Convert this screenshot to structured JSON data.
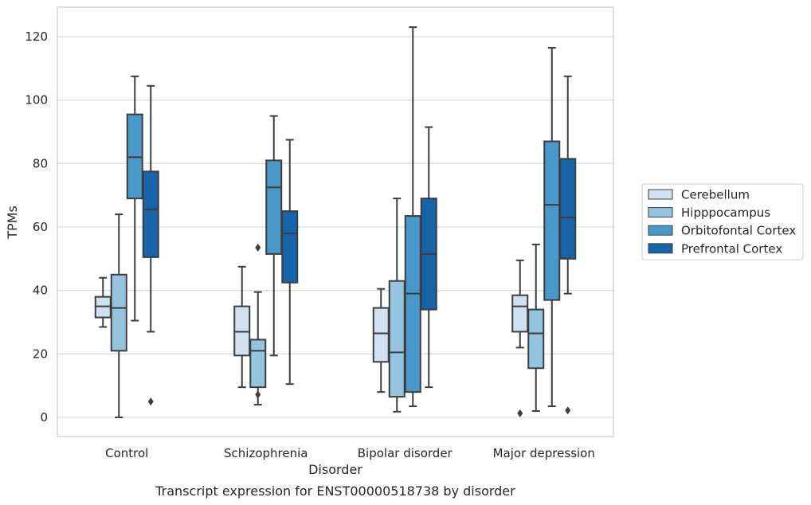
{
  "caption": "Transcript expression for ENST00000518738 by disorder",
  "chart_data": {
    "type": "boxplot",
    "xlabel": "Disorder",
    "ylabel": "TPMs",
    "ylim": [
      -6,
      129
    ],
    "yticks": [
      0,
      20,
      40,
      60,
      80,
      100,
      120
    ],
    "grid": "horizontal",
    "legend_position": "right",
    "categories": [
      "Control",
      "Schizophrenia",
      "Bipolar disorder",
      "Major depression"
    ],
    "series": [
      {
        "name": "Cerebellum",
        "color": "#d0e1f2",
        "boxes": [
          {
            "whisker_low": 28.5,
            "q1": 31.5,
            "median": 35,
            "q3": 38,
            "whisker_high": 44,
            "outliers": []
          },
          {
            "whisker_low": 9.5,
            "q1": 19.5,
            "median": 27,
            "q3": 35,
            "whisker_high": 47.5,
            "outliers": []
          },
          {
            "whisker_low": 8,
            "q1": 17.5,
            "median": 26.5,
            "q3": 34.5,
            "whisker_high": 40.5,
            "outliers": []
          },
          {
            "whisker_low": 22,
            "q1": 27,
            "median": 35,
            "q3": 38.5,
            "whisker_high": 49.5,
            "outliers": [
              1.3
            ]
          }
        ]
      },
      {
        "name": "Hipppocampus",
        "color": "#94c4df",
        "boxes": [
          {
            "whisker_low": 0,
            "q1": 21,
            "median": 34.5,
            "q3": 45,
            "whisker_high": 64,
            "outliers": []
          },
          {
            "whisker_low": 4,
            "q1": 9.5,
            "median": 21,
            "q3": 24.5,
            "whisker_high": 39.5,
            "outliers": [
              53.5,
              7.2
            ]
          },
          {
            "whisker_low": 1.8,
            "q1": 6.5,
            "median": 20.5,
            "q3": 43,
            "whisker_high": 69,
            "outliers": []
          },
          {
            "whisker_low": 2,
            "q1": 15.5,
            "median": 26.5,
            "q3": 34,
            "whisker_high": 54.5,
            "outliers": []
          }
        ]
      },
      {
        "name": "Orbitofontal Cortex",
        "color": "#4a98c9",
        "boxes": [
          {
            "whisker_low": 30.5,
            "q1": 69,
            "median": 82,
            "q3": 95.5,
            "whisker_high": 107.5,
            "outliers": []
          },
          {
            "whisker_low": 19.5,
            "q1": 51.5,
            "median": 72.5,
            "q3": 81,
            "whisker_high": 95,
            "outliers": []
          },
          {
            "whisker_low": 3.5,
            "q1": 8,
            "median": 39,
            "q3": 63.5,
            "whisker_high": 123,
            "outliers": []
          },
          {
            "whisker_low": 3.5,
            "q1": 37,
            "median": 67,
            "q3": 87,
            "whisker_high": 116.5,
            "outliers": []
          }
        ]
      },
      {
        "name": "Prefrontal Cortex",
        "color": "#1764ab",
        "boxes": [
          {
            "whisker_low": 27,
            "q1": 50.5,
            "median": 65.5,
            "q3": 77.5,
            "whisker_high": 104.5,
            "outliers": [
              5
            ]
          },
          {
            "whisker_low": 10.5,
            "q1": 42.5,
            "median": 58,
            "q3": 65,
            "whisker_high": 87.5,
            "outliers": []
          },
          {
            "whisker_low": 9.5,
            "q1": 34,
            "median": 51.5,
            "q3": 69,
            "whisker_high": 91.5,
            "outliers": []
          },
          {
            "whisker_low": 39,
            "q1": 50,
            "median": 63,
            "q3": 81.5,
            "whisker_high": 107.5,
            "outliers": [
              2.2
            ]
          }
        ]
      }
    ]
  }
}
